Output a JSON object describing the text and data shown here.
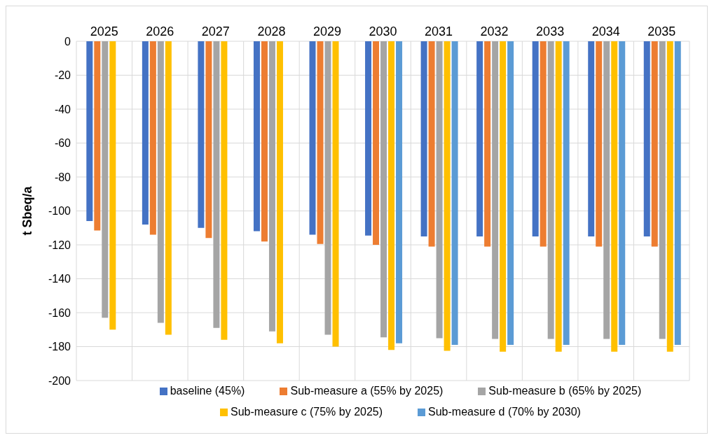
{
  "chart_data": {
    "type": "bar",
    "ylabel": "t Sbeq/a",
    "categories": [
      "2025",
      "2026",
      "2027",
      "2028",
      "2029",
      "2030",
      "2031",
      "2032",
      "2033",
      "2034",
      "2035"
    ],
    "series": [
      {
        "name": "baseline (45%)",
        "color": "#4472c4",
        "values": [
          -106,
          -108,
          -110,
          -112,
          -114,
          -114.5,
          -115,
          -115,
          -115,
          -115,
          -115
        ]
      },
      {
        "name": "Sub-measure a (55% by 2025)",
        "color": "#ed7d31",
        "values": [
          -111.5,
          -114,
          -116,
          -118,
          -119.5,
          -120,
          -121,
          -121,
          -121,
          -121,
          -121
        ]
      },
      {
        "name": "Sub-measure b (65% by 2025)",
        "color": "#a5a5a5",
        "values": [
          -163,
          -166,
          -169,
          -171,
          -173,
          -174.5,
          -175,
          -175.5,
          -175.5,
          -175.5,
          -175.5
        ]
      },
      {
        "name": "Sub-measure c (75% by 2025)",
        "color": "#ffc000",
        "values": [
          -170,
          -173,
          -176,
          -178,
          -180,
          -182,
          -182.5,
          -183,
          -183,
          -183,
          -183
        ]
      },
      {
        "name": "Sub-measure d (70% by 2030)",
        "color": "#5b9bd5",
        "values": [
          null,
          null,
          null,
          null,
          null,
          -178,
          -179,
          -179,
          -179,
          -179,
          -179
        ]
      }
    ],
    "ylim": [
      -200,
      0
    ],
    "yticks": [
      -200,
      -180,
      -160,
      -140,
      -120,
      -100,
      -80,
      -60,
      -40,
      -20,
      0
    ],
    "grid": true,
    "legend": "bottom"
  }
}
